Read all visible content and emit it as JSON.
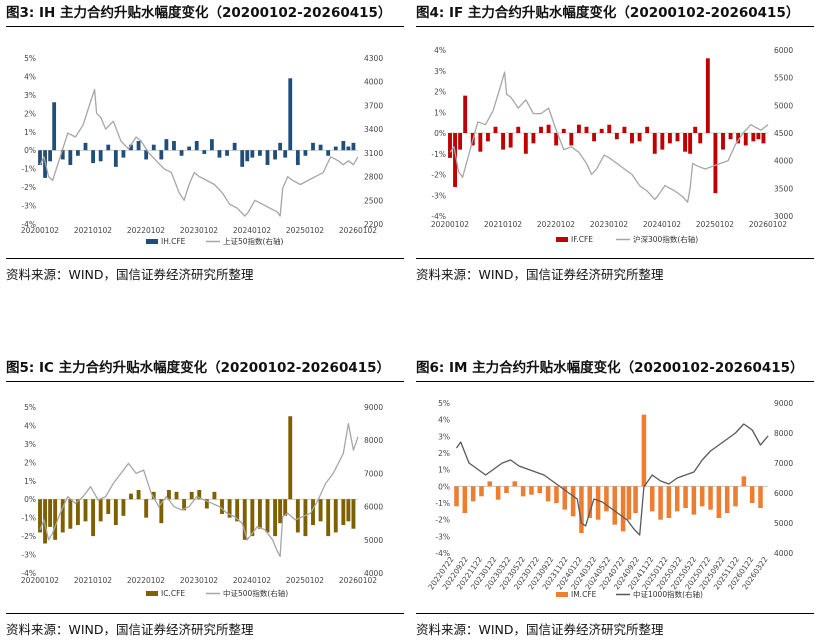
{
  "panels": [
    {
      "title": "图3: IH 主力合约升贴水幅度变化（20200102-20260415）",
      "source": "资料来源：WIND，国信证券经济研究所整理"
    },
    {
      "title": "图4: IF 主力合约升贴水幅度变化（20200102-20260415）",
      "source": "资料来源：WIND，国信证券经济研究所整理"
    },
    {
      "title": "图5: IC 主力合约升贴水幅度变化（20200102-20260415）",
      "source": "资料来源：WIND，国信证券经济研究所整理"
    },
    {
      "title": "图6: IM 主力合约升贴水幅度变化（20200102-20260415）",
      "source": "资料来源：WIND，国信证券经济研究所整理"
    }
  ],
  "chart_data": [
    {
      "type": "bar+line",
      "bar_color": "#1f4e79",
      "line_color": "#a6a6a6",
      "x_tick_labels": [
        "20200102",
        "20210102",
        "20220102",
        "20230102",
        "20240102",
        "20250102",
        "20260102"
      ],
      "y_left": {
        "ticks": [
          "5%",
          "4%",
          "3%",
          "2%",
          "1%",
          "0%",
          "-1%",
          "-2%",
          "-3%",
          "-4%"
        ],
        "range": [
          -4,
          5
        ]
      },
      "y_right": {
        "ticks": [
          "4300",
          "4000",
          "3700",
          "3400",
          "3100",
          "2800",
          "2500",
          "2200"
        ],
        "range": [
          2200,
          4300
        ]
      },
      "series": [
        {
          "name": "IH.CFE",
          "kind": "bar",
          "axis": "left",
          "x": [
            2020.0,
            2020.1,
            2020.2,
            2020.28,
            2020.45,
            2020.6,
            2020.75,
            2020.9,
            2021.05,
            2021.2,
            2021.35,
            2021.5,
            2021.65,
            2021.8,
            2021.95,
            2022.1,
            2022.25,
            2022.4,
            2022.5,
            2022.65,
            2022.8,
            2022.95,
            2023.1,
            2023.25,
            2023.4,
            2023.55,
            2023.7,
            2023.85,
            2024.0,
            2024.1,
            2024.2,
            2024.35,
            2024.5,
            2024.65,
            2024.75,
            2024.85,
            2024.95,
            2025.1,
            2025.25,
            2025.4,
            2025.55,
            2025.7,
            2025.85,
            2026.0,
            2026.1,
            2026.2
          ],
          "values": [
            -0.8,
            -1.5,
            -0.6,
            2.6,
            -0.5,
            -0.8,
            -0.3,
            0.4,
            -0.7,
            -0.6,
            0.3,
            -0.9,
            -0.4,
            0.3,
            0.5,
            -0.5,
            0.3,
            -0.5,
            0.6,
            0.5,
            -0.3,
            0.2,
            0.5,
            -0.2,
            0.6,
            -0.4,
            -0.3,
            0.4,
            -0.9,
            -0.6,
            -0.4,
            -0.3,
            -0.8,
            -0.5,
            0.4,
            -0.4,
            3.9,
            -0.8,
            -0.3,
            0.4,
            0.3,
            -0.3,
            0.2,
            0.5,
            0.2,
            0.4
          ]
        },
        {
          "name": "上证50指数(右轴)",
          "kind": "line",
          "axis": "right",
          "x": [
            2020.0,
            2020.08,
            2020.17,
            2020.25,
            2020.4,
            2020.55,
            2020.7,
            2020.85,
            2021.0,
            2021.08,
            2021.12,
            2021.2,
            2021.3,
            2021.45,
            2021.6,
            2021.75,
            2021.9,
            2022.0,
            2022.15,
            2022.3,
            2022.45,
            2022.6,
            2022.75,
            2022.85,
            2022.95,
            2023.05,
            2023.15,
            2023.3,
            2023.45,
            2023.6,
            2023.75,
            2023.9,
            2024.05,
            2024.12,
            2024.25,
            2024.4,
            2024.55,
            2024.7,
            2024.75,
            2024.8,
            2024.9,
            2025.0,
            2025.15,
            2025.3,
            2025.45,
            2025.6,
            2025.75,
            2025.9,
            2026.0,
            2026.1,
            2026.2,
            2026.29
          ],
          "values": [
            2950,
            3050,
            2800,
            2750,
            3050,
            3350,
            3300,
            3450,
            3750,
            3900,
            3600,
            3550,
            3400,
            3500,
            3250,
            3150,
            3300,
            3250,
            3100,
            3000,
            2900,
            2850,
            2600,
            2500,
            2700,
            2850,
            2800,
            2750,
            2700,
            2600,
            2450,
            2400,
            2300,
            2350,
            2500,
            2450,
            2400,
            2350,
            2300,
            2650,
            2800,
            2750,
            2700,
            2750,
            2800,
            2850,
            3050,
            3000,
            2950,
            3000,
            2950,
            3050
          ]
        }
      ]
    },
    {
      "type": "bar+line",
      "bar_color": "#c00000",
      "line_color": "#a6a6a6",
      "x_tick_labels": [
        "20200102",
        "20210102",
        "20220102",
        "20230102",
        "20240102",
        "20250102",
        "20260102"
      ],
      "y_left": {
        "ticks": [
          "4%",
          "3%",
          "2%",
          "1%",
          "0%",
          "-1%",
          "-2%",
          "-3%",
          "-4%"
        ],
        "range": [
          -4,
          4
        ]
      },
      "y_right": {
        "ticks": [
          "6000",
          "5500",
          "5000",
          "4500",
          "4000",
          "3500",
          "3000"
        ],
        "range": [
          3000,
          6000
        ]
      },
      "series": [
        {
          "name": "IF.CFE",
          "kind": "bar",
          "axis": "left",
          "x": [
            2020.0,
            2020.1,
            2020.2,
            2020.3,
            2020.45,
            2020.6,
            2020.75,
            2020.9,
            2021.05,
            2021.2,
            2021.35,
            2021.5,
            2021.65,
            2021.8,
            2021.95,
            2022.1,
            2022.25,
            2022.4,
            2022.55,
            2022.7,
            2022.85,
            2023.0,
            2023.15,
            2023.3,
            2023.45,
            2023.6,
            2023.75,
            2023.9,
            2024.05,
            2024.2,
            2024.35,
            2024.5,
            2024.65,
            2024.75,
            2024.85,
            2024.95,
            2025.1,
            2025.25,
            2025.4,
            2025.55,
            2025.7,
            2025.85,
            2026.0,
            2026.1,
            2026.2
          ],
          "values": [
            -1.2,
            -2.6,
            -0.8,
            1.8,
            -0.6,
            -0.9,
            -0.4,
            0.3,
            -0.8,
            -0.7,
            0.3,
            -1.0,
            -0.5,
            0.3,
            0.4,
            -0.6,
            0.2,
            -0.6,
            0.4,
            0.3,
            -0.4,
            0.2,
            0.4,
            -0.3,
            0.3,
            -0.5,
            -0.4,
            0.3,
            -1.0,
            -0.8,
            -0.5,
            -0.4,
            -0.9,
            -1.0,
            0.3,
            -0.5,
            3.6,
            -2.9,
            -0.8,
            -0.3,
            -0.5,
            -0.6,
            -0.4,
            -0.3,
            -0.5
          ]
        },
        {
          "name": "沪深300指数(右轴)",
          "kind": "line",
          "axis": "right",
          "x": [
            2020.0,
            2020.08,
            2020.17,
            2020.25,
            2020.4,
            2020.55,
            2020.7,
            2020.85,
            2021.0,
            2021.08,
            2021.12,
            2021.2,
            2021.35,
            2021.5,
            2021.65,
            2021.8,
            2021.95,
            2022.1,
            2022.25,
            2022.4,
            2022.55,
            2022.7,
            2022.8,
            2022.9,
            2023.05,
            2023.15,
            2023.3,
            2023.45,
            2023.6,
            2023.75,
            2023.9,
            2024.05,
            2024.1,
            2024.25,
            2024.45,
            2024.6,
            2024.7,
            2024.75,
            2024.8,
            2024.9,
            2025.05,
            2025.2,
            2025.35,
            2025.5,
            2025.65,
            2025.8,
            2025.95,
            2026.05,
            2026.15,
            2026.29
          ],
          "values": [
            4150,
            4250,
            3800,
            3700,
            4200,
            4700,
            4650,
            4900,
            5350,
            5600,
            5200,
            5150,
            4950,
            5100,
            4850,
            4850,
            4950,
            4550,
            4200,
            4250,
            4150,
            3950,
            3750,
            3850,
            4100,
            4050,
            3950,
            3850,
            3750,
            3550,
            3450,
            3300,
            3350,
            3550,
            3450,
            3350,
            3250,
            3500,
            3950,
            3900,
            3850,
            3900,
            3950,
            4000,
            4300,
            4500,
            4650,
            4600,
            4550,
            4650
          ]
        }
      ]
    },
    {
      "type": "bar+line",
      "bar_color": "#7f6000",
      "line_color": "#a6a6a6",
      "x_tick_labels": [
        "20200102",
        "20210102",
        "20220102",
        "20230102",
        "20240102",
        "20250102",
        "20260102"
      ],
      "y_left": {
        "ticks": [
          "5%",
          "4%",
          "3%",
          "2%",
          "1%",
          "0%",
          "-1%",
          "-2%",
          "-3%",
          "-4%"
        ],
        "range": [
          -4,
          5
        ]
      },
      "y_right": {
        "ticks": [
          "9000",
          "8000",
          "7000",
          "6000",
          "5000",
          "4000"
        ],
        "range": [
          4000,
          9000
        ]
      },
      "series": [
        {
          "name": "IC.CFE",
          "kind": "bar",
          "axis": "left",
          "x": [
            2020.0,
            2020.1,
            2020.2,
            2020.3,
            2020.45,
            2020.6,
            2020.75,
            2020.9,
            2021.05,
            2021.2,
            2021.35,
            2021.5,
            2021.65,
            2021.8,
            2021.95,
            2022.1,
            2022.25,
            2022.4,
            2022.55,
            2022.7,
            2022.85,
            2023.0,
            2023.15,
            2023.3,
            2023.45,
            2023.6,
            2023.75,
            2023.9,
            2024.05,
            2024.2,
            2024.35,
            2024.5,
            2024.65,
            2024.75,
            2024.85,
            2024.95,
            2025.1,
            2025.25,
            2025.4,
            2025.55,
            2025.7,
            2025.85,
            2026.0,
            2026.1,
            2026.2
          ],
          "values": [
            -1.8,
            -2.4,
            -1.5,
            -2.2,
            -1.8,
            -1.6,
            -1.4,
            -1.2,
            -2.0,
            -1.2,
            -0.8,
            -1.4,
            -0.9,
            0.3,
            0.5,
            -1.0,
            0.4,
            -1.3,
            0.5,
            0.4,
            -0.6,
            0.4,
            0.5,
            -0.5,
            0.4,
            -0.8,
            -1.0,
            -1.2,
            -2.2,
            -2.0,
            -1.6,
            -1.8,
            -2.0,
            -1.3,
            -0.9,
            4.5,
            -1.8,
            -2.0,
            -1.4,
            -1.2,
            -2.0,
            -1.8,
            -1.4,
            -1.2,
            -1.6
          ]
        },
        {
          "name": "中证500指数(右轴)",
          "kind": "line",
          "axis": "right",
          "x": [
            2020.0,
            2020.08,
            2020.17,
            2020.25,
            2020.4,
            2020.55,
            2020.7,
            2020.85,
            2021.0,
            2021.15,
            2021.3,
            2021.45,
            2021.6,
            2021.75,
            2021.9,
            2022.05,
            2022.2,
            2022.35,
            2022.5,
            2022.65,
            2022.8,
            2022.95,
            2023.1,
            2023.25,
            2023.4,
            2023.55,
            2023.7,
            2023.85,
            2024.0,
            2024.1,
            2024.2,
            2024.3,
            2024.45,
            2024.6,
            2024.68,
            2024.75,
            2024.8,
            2024.9,
            2025.05,
            2025.2,
            2025.35,
            2025.5,
            2025.65,
            2025.8,
            2025.9,
            2026.0,
            2026.1,
            2026.2,
            2026.29
          ],
          "values": [
            5300,
            5600,
            5000,
            5200,
            5800,
            6300,
            6100,
            6300,
            6600,
            6200,
            6300,
            6700,
            7000,
            7300,
            7000,
            7100,
            6400,
            6000,
            6300,
            6000,
            5900,
            6000,
            6300,
            6200,
            6100,
            6000,
            5800,
            5700,
            5500,
            5000,
            5200,
            5400,
            5300,
            5000,
            4700,
            4500,
            5700,
            5800,
            5600,
            5700,
            5800,
            6200,
            6700,
            7000,
            7300,
            7600,
            8500,
            7700,
            8100
          ]
        }
      ]
    },
    {
      "type": "bar+line",
      "bar_color": "#ed7d31",
      "line_color": "#595959",
      "x_tick_labels": [
        "20220722",
        "20220922",
        "20221122",
        "20230122",
        "20230322",
        "20230522",
        "20230722",
        "20230922",
        "20231122",
        "20240122",
        "20240322",
        "20240522",
        "20240722",
        "20240922",
        "20241122",
        "20250122",
        "20250322",
        "20250522",
        "20250722",
        "20250922",
        "20251122",
        "20260122",
        "20260322"
      ],
      "y_left": {
        "ticks": [
          "5%",
          "4%",
          "3%",
          "2%",
          "1%",
          "0%",
          "-1%",
          "-2%",
          "-3%",
          "-4%"
        ],
        "range": [
          -4,
          5
        ]
      },
      "y_right": {
        "ticks": [
          "9000",
          "8000",
          "7000",
          "6000",
          "5000",
          "4000"
        ],
        "range": [
          4000,
          9000
        ]
      },
      "series": [
        {
          "name": "IM.CFE",
          "kind": "bar",
          "axis": "left",
          "x": [
            2022.55,
            2022.65,
            2022.75,
            2022.85,
            2022.95,
            2023.05,
            2023.15,
            2023.25,
            2023.35,
            2023.45,
            2023.55,
            2023.65,
            2023.75,
            2023.85,
            2023.95,
            2024.05,
            2024.15,
            2024.25,
            2024.35,
            2024.45,
            2024.55,
            2024.62,
            2024.7,
            2024.8,
            2024.9,
            2025.0,
            2025.1,
            2025.2,
            2025.3,
            2025.4,
            2025.5,
            2025.6,
            2025.7,
            2025.8,
            2025.9,
            2026.0,
            2026.1,
            2026.2
          ],
          "values": [
            -1.2,
            -1.6,
            -0.9,
            -0.6,
            0.3,
            -0.8,
            -0.4,
            0.3,
            -0.6,
            -0.5,
            -0.4,
            -0.9,
            -1.0,
            -1.4,
            -1.8,
            -2.8,
            -1.9,
            -2.0,
            -1.5,
            -2.3,
            -2.7,
            -2.0,
            -1.6,
            4.3,
            -1.5,
            -2.0,
            -1.9,
            -1.5,
            -1.3,
            -1.7,
            -1.2,
            -1.4,
            -1.9,
            -1.6,
            -1.2,
            0.6,
            -1.0,
            -1.3
          ]
        },
        {
          "name": "中证1000指数(右轴)",
          "kind": "line",
          "axis": "right",
          "x": [
            2022.55,
            2022.6,
            2022.7,
            2022.8,
            2022.9,
            2023.0,
            2023.1,
            2023.2,
            2023.3,
            2023.4,
            2023.5,
            2023.6,
            2023.7,
            2023.8,
            2023.9,
            2024.0,
            2024.05,
            2024.1,
            2024.2,
            2024.3,
            2024.4,
            2024.5,
            2024.6,
            2024.68,
            2024.75,
            2024.8,
            2024.9,
            2025.0,
            2025.1,
            2025.2,
            2025.3,
            2025.4,
            2025.5,
            2025.6,
            2025.7,
            2025.8,
            2025.9,
            2026.0,
            2026.1,
            2026.2,
            2026.29
          ],
          "values": [
            7500,
            7700,
            7000,
            6800,
            6600,
            6800,
            7000,
            7100,
            6900,
            6800,
            6700,
            6600,
            6400,
            6200,
            6000,
            5800,
            5000,
            4900,
            5800,
            5700,
            5500,
            5300,
            5100,
            4800,
            4600,
            6200,
            6600,
            6400,
            6300,
            6500,
            6600,
            6700,
            7100,
            7400,
            7600,
            7800,
            8000,
            8300,
            8100,
            7600,
            7900
          ]
        }
      ]
    }
  ]
}
